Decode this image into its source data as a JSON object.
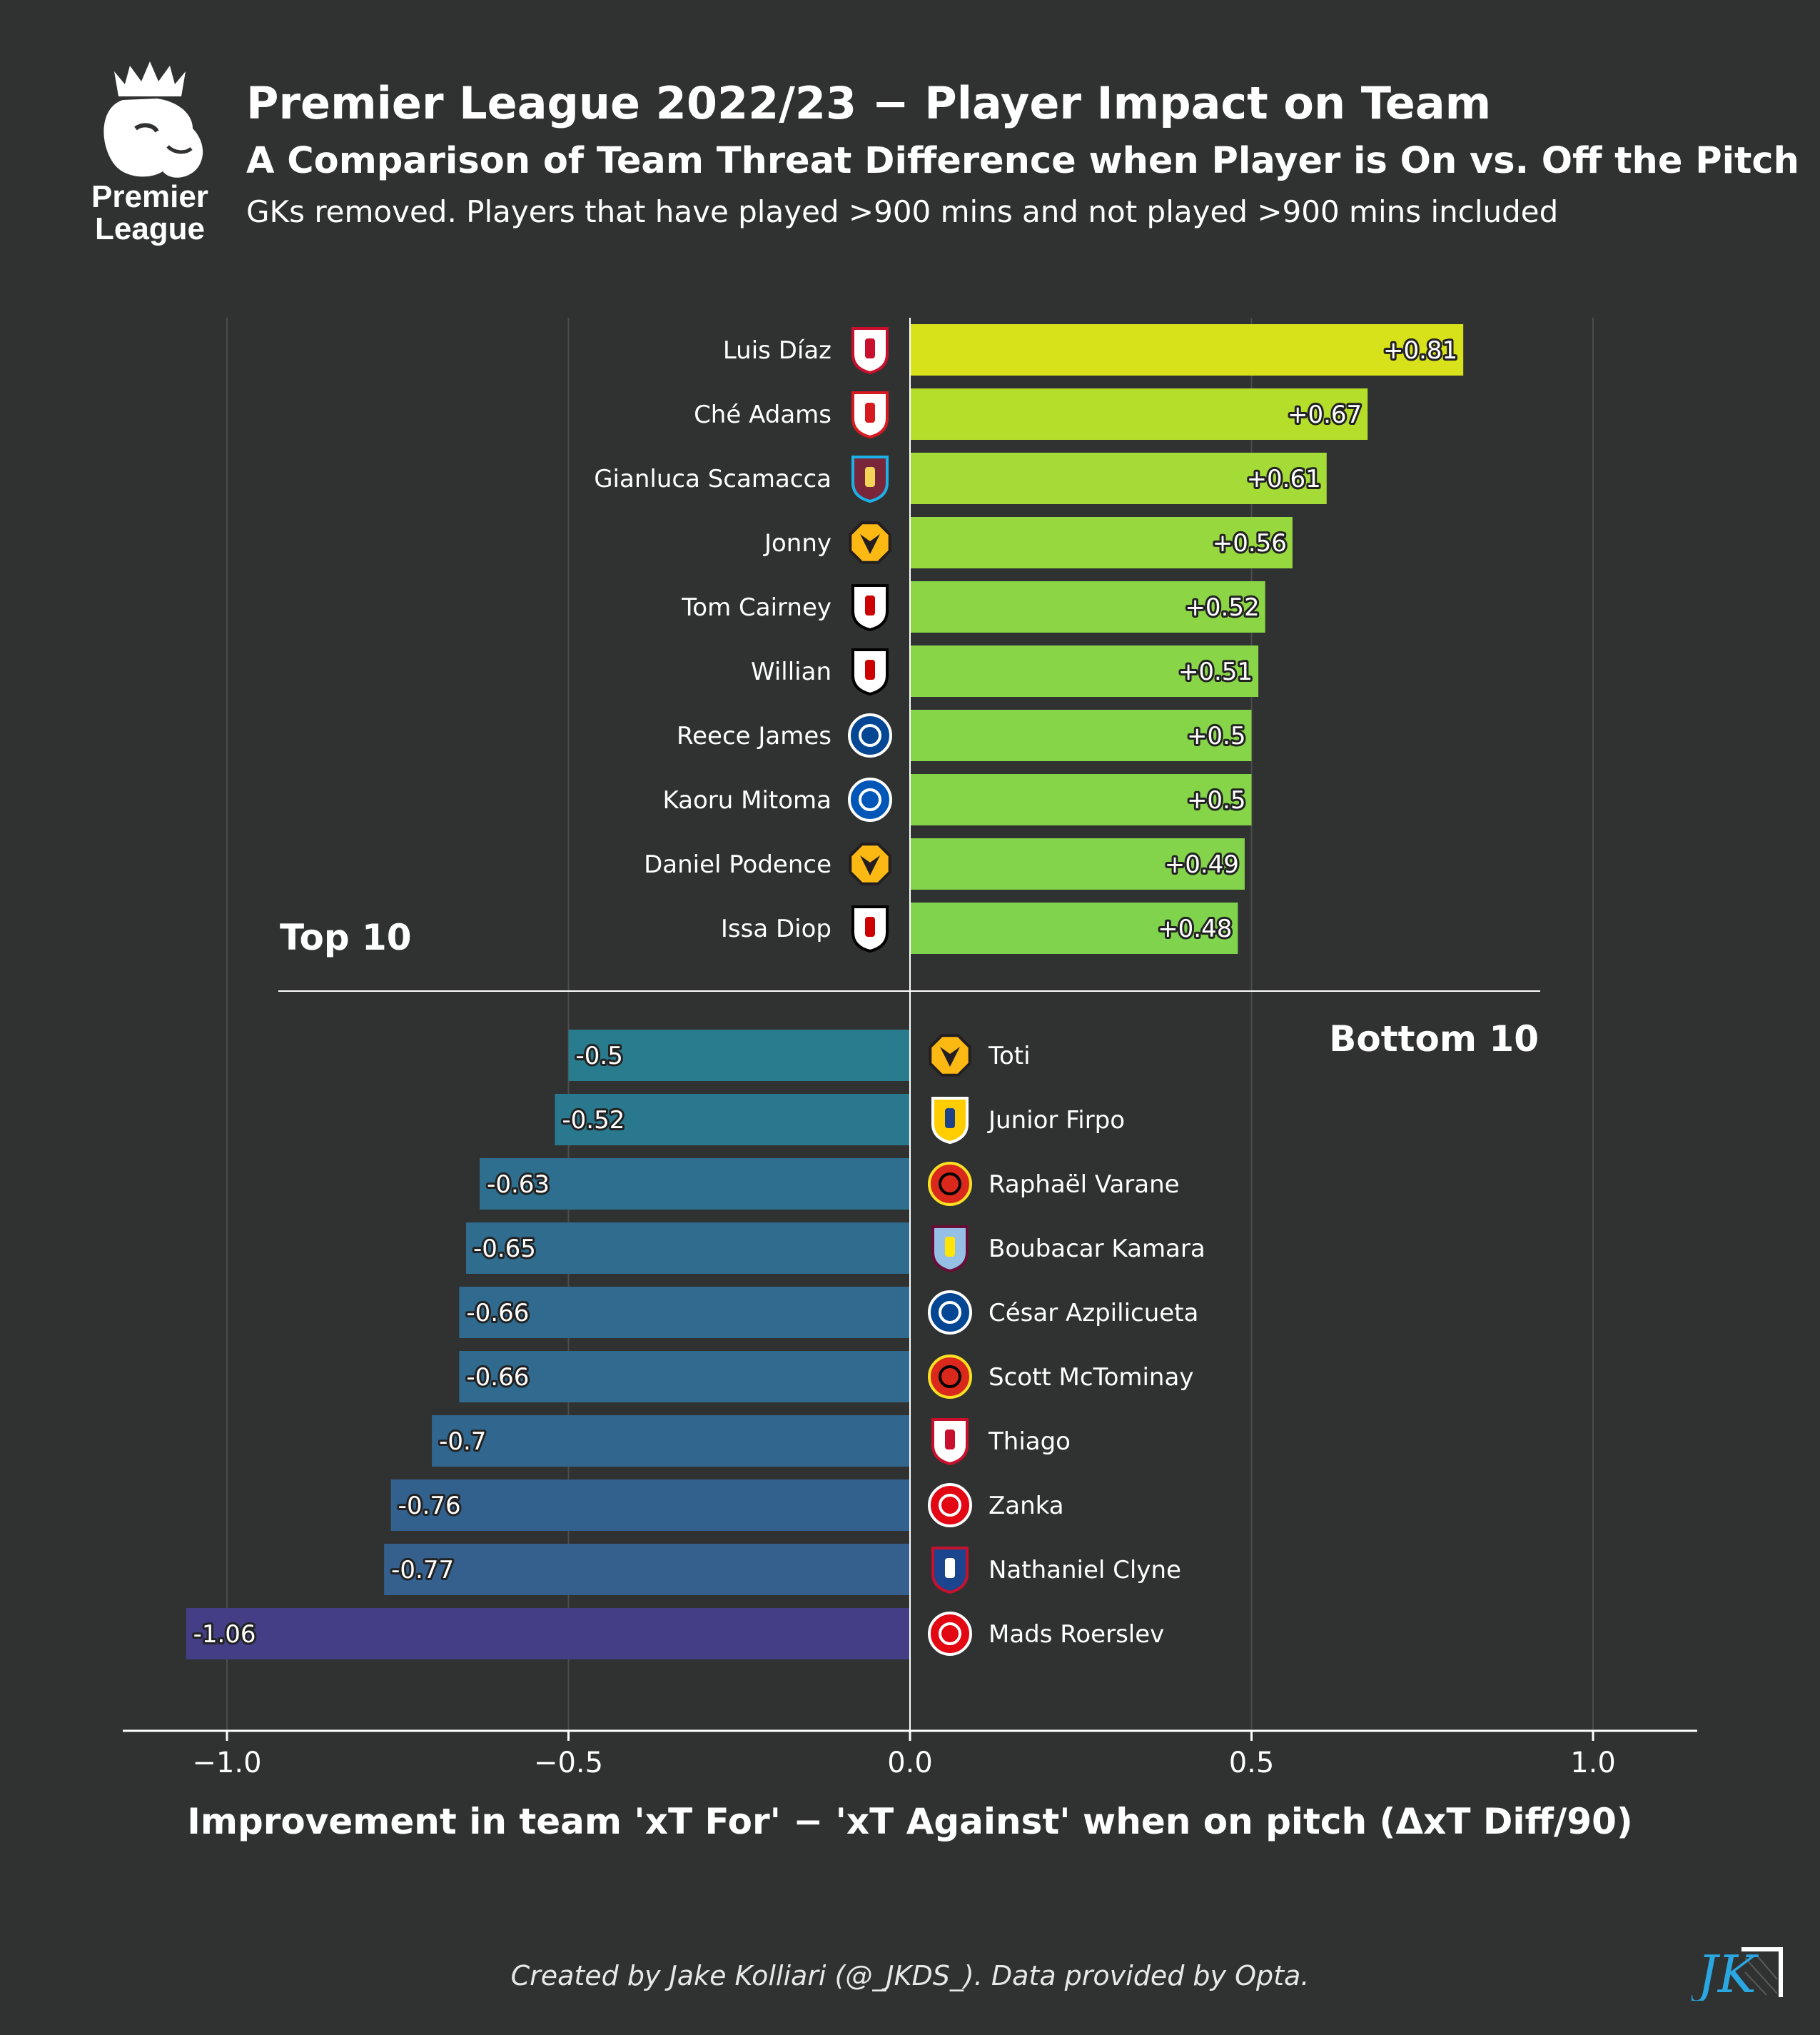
{
  "header": {
    "title": "Premier League 2022/23 − Player Impact on Team",
    "subtitle": "A Comparison of Team Threat Difference when Player is On vs. Off the Pitch",
    "note": "GKs removed. Players that have played  >900 mins and not played >900 mins included",
    "logo_lines": [
      "Premier",
      "League"
    ]
  },
  "footer": {
    "credit": "Created by Jake Kolliari (@_JKDS_). Data provided by Opta.",
    "logo_text": "JK"
  },
  "chart_data": {
    "type": "bar",
    "orientation": "horizontal",
    "xlabel": "Improvement in team 'xT For' − 'xT Against' when on pitch (ΔxT Diff/90)",
    "xlim": [
      -1.15,
      1.15
    ],
    "xticks": [
      -1.0,
      -0.5,
      0.0,
      0.5,
      1.0
    ],
    "xtick_labels": [
      "−1.0",
      "−0.5",
      "0.0",
      "0.5",
      "1.0"
    ],
    "grid": "vertical",
    "colormap": "viridis",
    "top": {
      "label": "Top 10",
      "players": [
        {
          "name": "Luis Díaz",
          "club": "Liverpool",
          "value": 0.81,
          "label": "+0.81",
          "color": "#d8e21a"
        },
        {
          "name": "Ché Adams",
          "club": "Southampton",
          "value": 0.67,
          "label": "+0.67",
          "color": "#b5de2b"
        },
        {
          "name": "Gianluca Scamacca",
          "club": "West Ham",
          "value": 0.61,
          "label": "+0.61",
          "color": "#a5db36"
        },
        {
          "name": "Jonny",
          "club": "Wolves",
          "value": 0.56,
          "label": "+0.56",
          "color": "#97d83f"
        },
        {
          "name": "Tom Cairney",
          "club": "Fulham",
          "value": 0.52,
          "label": "+0.52",
          "color": "#8cd646"
        },
        {
          "name": "Willian",
          "club": "Fulham",
          "value": 0.51,
          "label": "+0.51",
          "color": "#89d548"
        },
        {
          "name": "Reece James",
          "club": "Chelsea",
          "value": 0.5,
          "label": "+0.5",
          "color": "#86d549"
        },
        {
          "name": "Kaoru Mitoma",
          "club": "Brighton",
          "value": 0.5,
          "label": "+0.5",
          "color": "#86d549"
        },
        {
          "name": "Daniel Podence",
          "club": "Wolves",
          "value": 0.49,
          "label": "+0.49",
          "color": "#83d44b"
        },
        {
          "name": "Issa Diop",
          "club": "Fulham",
          "value": 0.48,
          "label": "+0.48",
          "color": "#80d34d"
        }
      ]
    },
    "bottom": {
      "label": "Bottom 10",
      "players": [
        {
          "name": "Toti",
          "club": "Wolves",
          "value": -0.5,
          "label": "-0.5",
          "color": "#297b8e"
        },
        {
          "name": "Junior Firpo",
          "club": "Leeds",
          "value": -0.52,
          "label": "-0.52",
          "color": "#2a788e"
        },
        {
          "name": "Raphaël Varane",
          "club": "Man Utd",
          "value": -0.63,
          "label": "-0.63",
          "color": "#2e6e8e"
        },
        {
          "name": "Boubacar Kamara",
          "club": "Aston Villa",
          "value": -0.65,
          "label": "-0.65",
          "color": "#2f6c8e"
        },
        {
          "name": "César Azpilicueta",
          "club": "Chelsea",
          "value": -0.66,
          "label": "-0.66",
          "color": "#306a8e"
        },
        {
          "name": "Scott McTominay",
          "club": "Man Utd",
          "value": -0.66,
          "label": "-0.66",
          "color": "#306a8e"
        },
        {
          "name": "Thiago",
          "club": "Liverpool",
          "value": -0.7,
          "label": "-0.7",
          "color": "#31678e"
        },
        {
          "name": "Zanka",
          "club": "Brentford",
          "value": -0.76,
          "label": "-0.76",
          "color": "#33618d"
        },
        {
          "name": "Nathaniel Clyne",
          "club": "Crystal Palace",
          "value": -0.77,
          "label": "-0.77",
          "color": "#355f8d"
        },
        {
          "name": "Mads Roerslev",
          "club": "Brentford",
          "value": -1.06,
          "label": "-1.06",
          "color": "#433e85"
        }
      ]
    }
  }
}
